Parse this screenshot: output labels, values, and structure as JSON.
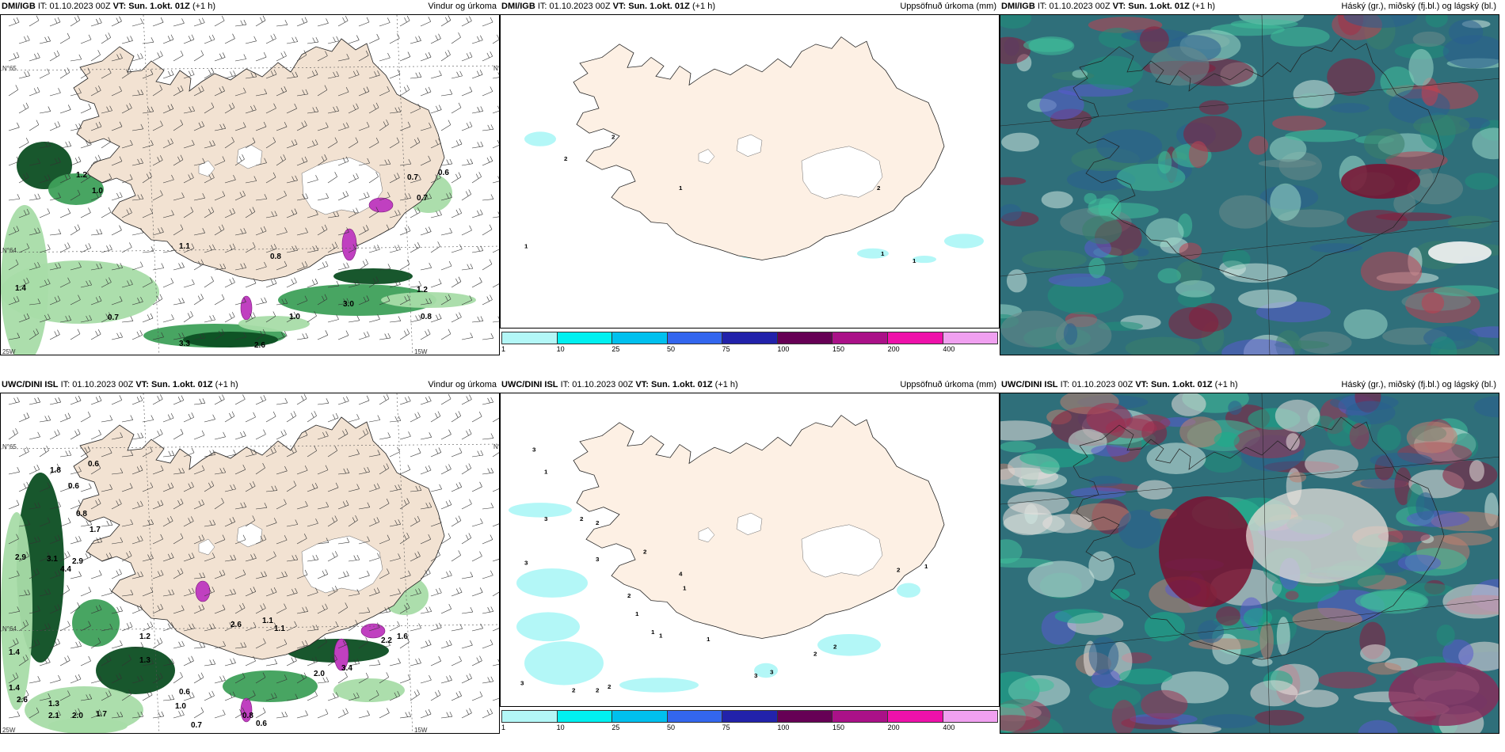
{
  "common": {
    "init_prefix": "IT:",
    "init_time": "01.10.2023 00Z",
    "vt_prefix": "VT:",
    "vt_time": "Sun. 1.okt. 01Z",
    "lead": "(+1 h)"
  },
  "panels": [
    {
      "model": "DMI/IGB",
      "title": "Vindur og úrkoma",
      "kind": "wind",
      "values": [
        "1.2",
        "1.0",
        "1.1",
        "0.8",
        "0.7",
        "0.6",
        "0.7",
        "1.4",
        "0.7",
        "3.3",
        "2.6",
        "1.0",
        "3.0",
        "1.2",
        "0.8"
      ],
      "axis_labels": [
        "N°65",
        "N°64",
        "15W",
        "25W",
        "N°65"
      ]
    },
    {
      "model": "DMI/IGB",
      "title": "Uppsöfnuð úrkoma (mm)",
      "kind": "accum",
      "values": [
        "2",
        "2",
        "1",
        "1",
        "1",
        "1",
        "2"
      ]
    },
    {
      "model": "DMI/IGB",
      "title": "Háský (gr.), miðský (fj.bl.) og lágský (bl.)",
      "kind": "cloud"
    },
    {
      "model": "UWC/DINI ISL",
      "title": "Vindur og úrkoma",
      "kind": "wind",
      "values": [
        "1.8",
        "0.6",
        "0.6",
        "3.1",
        "2.9",
        "4.4",
        "0.8",
        "1.7",
        "2.9",
        "2.6",
        "1.2",
        "1.1",
        "1.4",
        "1.3",
        "1.1",
        "2.1",
        "2.0",
        "1.7",
        "1.0",
        "0.7",
        "0.6",
        "3.4",
        "2.0",
        "1.3",
        "2.2",
        "1.6",
        "0.8",
        "0.6",
        "2.6",
        "1.4"
      ],
      "axis_labels": [
        "N°65",
        "N°64",
        "15W",
        "25W",
        "N°65"
      ]
    },
    {
      "model": "UWC/DINI ISL",
      "title": "Uppsöfnuð úrkoma (mm)",
      "kind": "accum",
      "values": [
        "3",
        "1",
        "3",
        "2",
        "2",
        "3",
        "3",
        "2",
        "2",
        "1",
        "4",
        "1",
        "1",
        "1",
        "1",
        "3",
        "2",
        "2",
        "2",
        "3",
        "3",
        "2",
        "2",
        "2",
        "1"
      ]
    },
    {
      "model": "UWC/DINI ISL",
      "title": "Háský (gr.), miðský (fj.bl.) og lágský (bl.)",
      "kind": "cloud"
    }
  ],
  "colorbar": {
    "colors": [
      "#b3f7f7",
      "#00f0f0",
      "#00c0ee",
      "#3366ee",
      "#2222aa",
      "#660055",
      "#aa1188",
      "#ee11aa",
      "#f0a0f0"
    ],
    "ticks": [
      "1",
      "10",
      "25",
      "50",
      "75",
      "100",
      "150",
      "200",
      "400"
    ]
  },
  "map_colors": {
    "land": "#f2e2d2",
    "land_accum": "#fdf0e4",
    "cloud_bg": "#2f6f7a",
    "precip_light": "#a8dca8",
    "precip_mid": "#3ea05a",
    "precip_dark": "#0c4e22",
    "precip_magenta": "#c040c0"
  }
}
